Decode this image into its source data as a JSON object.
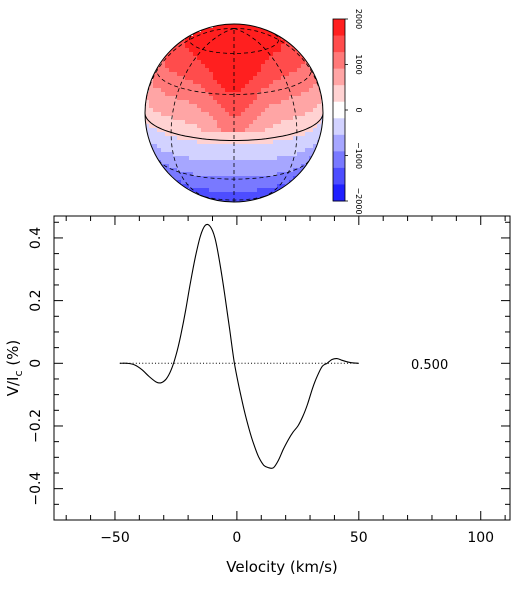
{
  "chart_data": [
    {
      "type": "heatmap",
      "title": "",
      "description_type": "stellar magnetic field map on an orthographic sphere",
      "colorbar": {
        "min": -2000,
        "max": 2000,
        "ticks": [
          2000,
          1000,
          0,
          -1000,
          -2000
        ],
        "levels": [
          2000,
          1600,
          1200,
          800,
          400,
          0,
          -400,
          -800,
          -1200,
          -1600,
          -2000
        ],
        "positive_color": "#ff1f1f",
        "negative_color": "#2020ff",
        "zero_color": "#ffffff"
      },
      "field": {
        "peak_positive": 1800,
        "peak_negative": -1400
      }
    },
    {
      "type": "line",
      "title": "",
      "xlabel": "Velocity (km/s)",
      "ylabel_main": "V/I",
      "ylabel_sub": "c",
      "ylabel_suffix": " (%)",
      "xlim": [
        -75,
        112
      ],
      "ylim": [
        -0.5,
        0.47
      ],
      "xticks": [
        -50,
        0,
        50,
        100
      ],
      "yticks": [
        -0.4,
        -0.2,
        0,
        0.2,
        0.4
      ],
      "xtick_labels": [
        "−50",
        "0",
        "50",
        "100"
      ],
      "ytick_labels": [
        "−0.4",
        "−0.2",
        "0",
        "0.2",
        "0.4"
      ],
      "phase_label": "0.500",
      "zero_line": {
        "x": [
          -48,
          50
        ],
        "y": 0,
        "style": "dotted"
      },
      "series": [
        {
          "x": [
            -48,
            -45,
            -42,
            -39,
            -36,
            -33,
            -31,
            -29,
            -27,
            -25,
            -23,
            -21,
            -19,
            -17,
            -15,
            -13,
            -11,
            -9,
            -7,
            -5,
            -3,
            -1,
            1,
            3,
            5,
            7,
            9,
            11,
            13,
            15,
            17,
            19,
            21,
            23,
            25,
            27,
            29,
            31,
            33,
            35,
            37,
            39,
            41,
            43,
            45,
            47,
            50
          ],
          "values": [
            0.0,
            0.0,
            -0.005,
            -0.02,
            -0.042,
            -0.06,
            -0.062,
            -0.05,
            -0.022,
            0.025,
            0.09,
            0.17,
            0.26,
            0.34,
            0.405,
            0.44,
            0.437,
            0.4,
            0.32,
            0.22,
            0.11,
            0.0,
            -0.08,
            -0.15,
            -0.21,
            -0.26,
            -0.3,
            -0.325,
            -0.333,
            -0.333,
            -0.31,
            -0.275,
            -0.245,
            -0.22,
            -0.2,
            -0.17,
            -0.13,
            -0.08,
            -0.04,
            -0.01,
            0.0,
            0.012,
            0.015,
            0.01,
            0.005,
            0.002,
            0.0
          ]
        }
      ]
    }
  ]
}
